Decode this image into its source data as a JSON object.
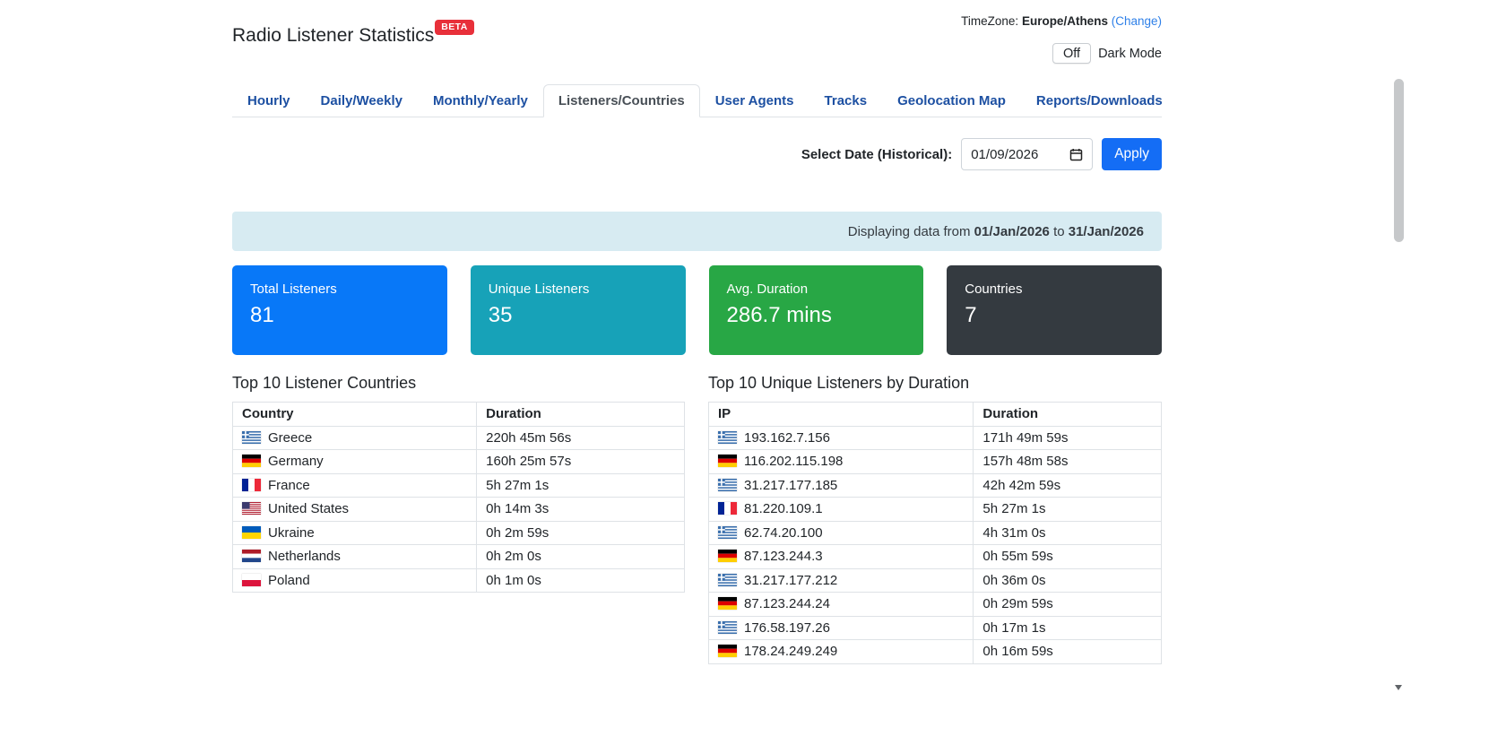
{
  "header": {
    "title": "Radio Listener Statistics",
    "beta_badge": "BETA",
    "timezone": {
      "label": "TimeZone:",
      "value": "Europe/Athens",
      "change_link": "(Change)"
    },
    "dark_mode": {
      "toggle_label": "Off",
      "label": "Dark Mode"
    }
  },
  "tabs": [
    {
      "label": "Hourly",
      "active": false
    },
    {
      "label": "Daily/Weekly",
      "active": false
    },
    {
      "label": "Monthly/Yearly",
      "active": false
    },
    {
      "label": "Listeners/Countries",
      "active": true
    },
    {
      "label": "User Agents",
      "active": false
    },
    {
      "label": "Tracks",
      "active": false
    },
    {
      "label": "Geolocation Map",
      "active": false
    },
    {
      "label": "Reports/Downloads",
      "active": false
    }
  ],
  "date_filter": {
    "label": "Select Date (Historical):",
    "value": "01/09/2026",
    "apply_label": "Apply"
  },
  "banner": {
    "text_prefix": "Displaying data from",
    "date_from": "01/Jan/2026",
    "separator": "to",
    "date_to": "31/Jan/2026"
  },
  "stat_cards": [
    {
      "label": "Total Listeners",
      "value": "81",
      "color": "#0878f8"
    },
    {
      "label": "Unique Listeners",
      "value": "35",
      "color": "#17a2b8"
    },
    {
      "label": "Avg. Duration",
      "value": "286.7 mins",
      "color": "#28a745"
    },
    {
      "label": "Countries",
      "value": "7",
      "color": "#343a40"
    }
  ],
  "countries_table": {
    "title": "Top 10 Listener Countries",
    "columns": [
      "Country",
      "Duration"
    ],
    "rows": [
      {
        "flag": "gr",
        "country": "Greece",
        "duration": "220h 45m 56s"
      },
      {
        "flag": "de",
        "country": "Germany",
        "duration": "160h 25m 57s"
      },
      {
        "flag": "fr",
        "country": "France",
        "duration": "5h 27m 1s"
      },
      {
        "flag": "us",
        "country": "United States",
        "duration": "0h 14m 3s"
      },
      {
        "flag": "ua",
        "country": "Ukraine",
        "duration": "0h 2m 59s"
      },
      {
        "flag": "nl",
        "country": "Netherlands",
        "duration": "0h 2m 0s"
      },
      {
        "flag": "pl",
        "country": "Poland",
        "duration": "0h 1m 0s"
      }
    ]
  },
  "listeners_table": {
    "title": "Top 10 Unique Listeners by Duration",
    "columns": [
      "IP",
      "Duration"
    ],
    "rows": [
      {
        "flag": "gr",
        "ip": "193.162.7.156",
        "duration": "171h 49m 59s"
      },
      {
        "flag": "de",
        "ip": "116.202.115.198",
        "duration": "157h 48m 58s"
      },
      {
        "flag": "gr",
        "ip": "31.217.177.185",
        "duration": "42h 42m 59s"
      },
      {
        "flag": "fr",
        "ip": "81.220.109.1",
        "duration": "5h 27m 1s"
      },
      {
        "flag": "gr",
        "ip": "62.74.20.100",
        "duration": "4h 31m 0s"
      },
      {
        "flag": "de",
        "ip": "87.123.244.3",
        "duration": "0h 55m 59s"
      },
      {
        "flag": "gr",
        "ip": "31.217.177.212",
        "duration": "0h 36m 0s"
      },
      {
        "flag": "de",
        "ip": "87.123.244.24",
        "duration": "0h 29m 59s"
      },
      {
        "flag": "gr",
        "ip": "176.58.197.26",
        "duration": "0h 17m 1s"
      },
      {
        "flag": "de",
        "ip": "178.24.249.249",
        "duration": "0h 16m 59s"
      }
    ]
  }
}
